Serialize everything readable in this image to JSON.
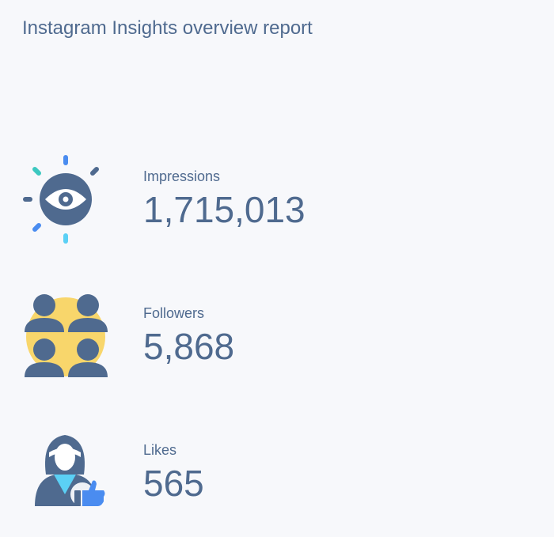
{
  "header": {
    "title": "Instagram Insights overview report"
  },
  "metrics": [
    {
      "label": "Impressions",
      "value": "1,715,013"
    },
    {
      "label": "Followers",
      "value": "5,868"
    },
    {
      "label": "Likes",
      "value": "565"
    }
  ]
}
